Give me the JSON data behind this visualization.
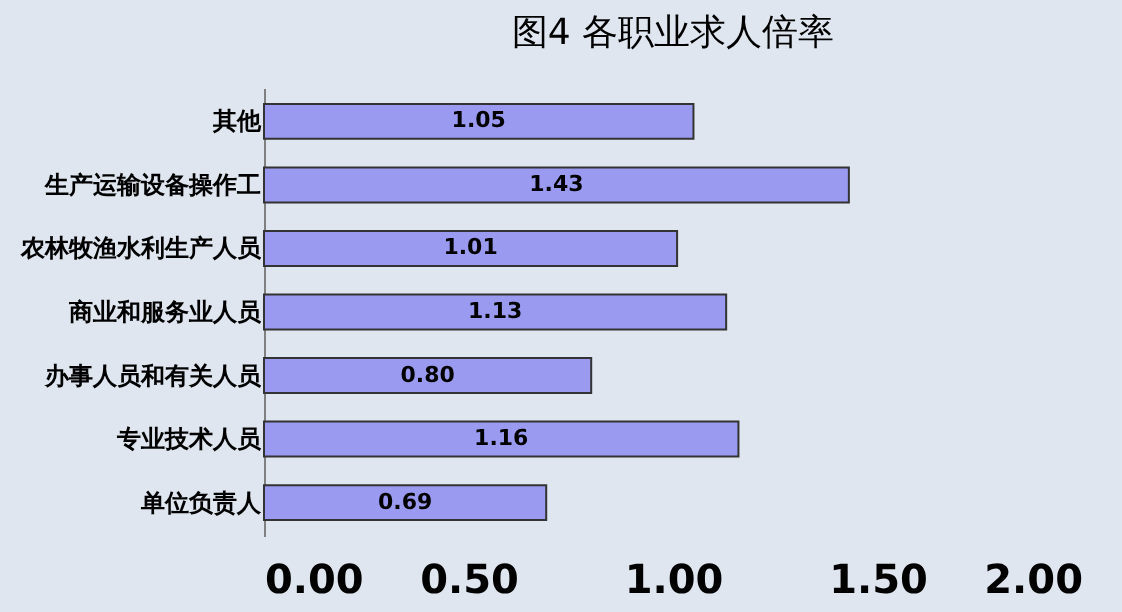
{
  "chart_data": {
    "type": "bar",
    "orientation": "horizontal",
    "title": "图4  各职业求人倍率",
    "categories": [
      "其他",
      "生产运输设备操作工",
      "农林牧渔水利生产人员",
      "商业和服务业人员",
      "办事人员和有关人员",
      "专业技术人员",
      "单位负责人"
    ],
    "values": [
      1.05,
      1.43,
      1.01,
      1.13,
      0.8,
      1.16,
      0.69
    ],
    "value_labels": [
      "1.05",
      "1.43",
      "1.01",
      "1.13",
      "0.80",
      "1.16",
      "0.69"
    ],
    "color": "#9a9af0",
    "xlim": [
      0,
      2
    ],
    "xticks": [
      {
        "value": 0,
        "label": "0.00"
      },
      {
        "value": 0.5,
        "label": "0.50"
      },
      {
        "value": 1,
        "label": "1.00"
      },
      {
        "value": 1.5,
        "label": "1.50"
      },
      {
        "value": 2,
        "label": "2.00"
      }
    ],
    "grid": false
  }
}
